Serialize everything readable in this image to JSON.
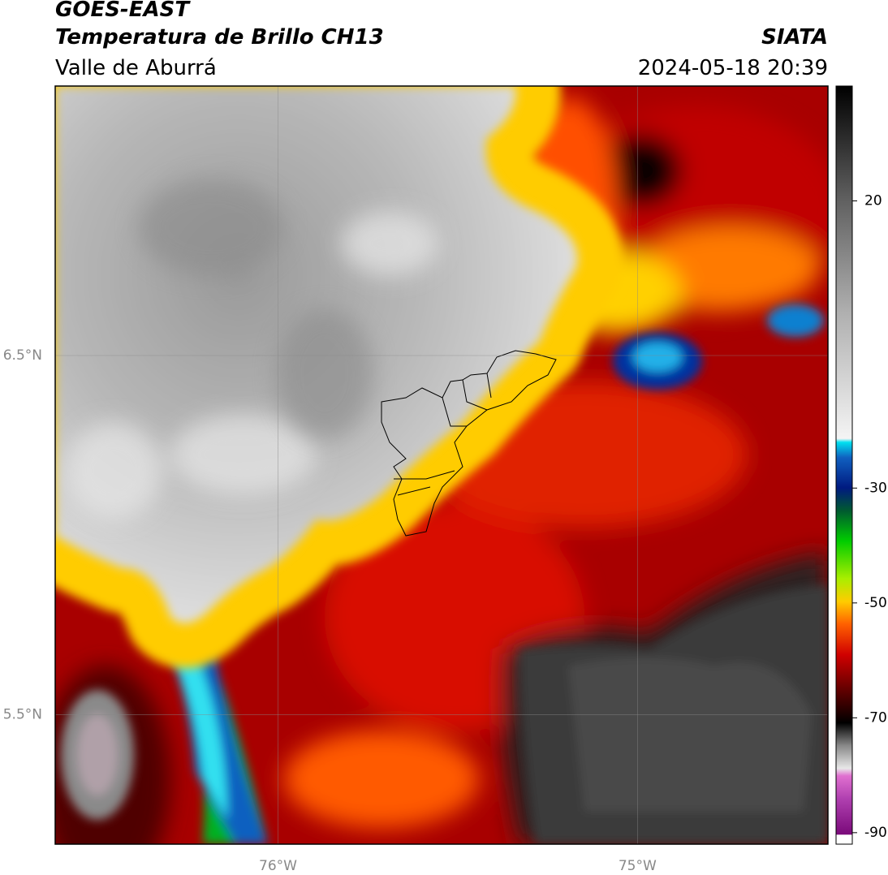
{
  "header": {
    "title": "GOES-EAST",
    "subtitle": "Temperatura de Brillo CH13",
    "region": "Valle de Aburrá",
    "source": "SIATA",
    "datetime": "2024-05-18 20:39"
  },
  "map": {
    "xlim": [
      -76.62,
      -74.47
    ],
    "ylim": [
      5.14,
      7.25
    ],
    "xticks": [
      {
        "value": -76,
        "label": "76°W"
      },
      {
        "value": -75,
        "label": "75°W"
      }
    ],
    "yticks": [
      {
        "value": 5.5,
        "label": "5.5°N"
      },
      {
        "value": 6.5,
        "label": "6.5°N"
      }
    ],
    "grid": true
  },
  "colorbar": {
    "lim": [
      -92,
      40
    ],
    "ticks": [
      20,
      -30,
      -50,
      -70,
      -90
    ]
  }
}
